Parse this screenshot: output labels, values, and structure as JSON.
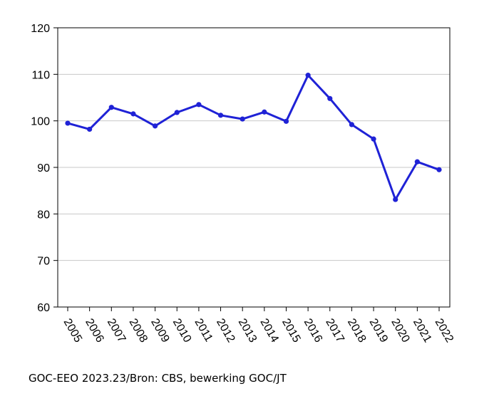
{
  "chart_data": {
    "type": "line",
    "title": "",
    "xlabel": "",
    "ylabel": "",
    "x": [
      "2005",
      "2006",
      "2007",
      "2008",
      "2009",
      "2010",
      "2011",
      "2012",
      "2013",
      "2014",
      "2015",
      "2016",
      "2017",
      "2018",
      "2019",
      "2020",
      "2021",
      "2022"
    ],
    "series": [
      {
        "values": [
          99.5,
          98.2,
          102.9,
          101.5,
          98.9,
          101.8,
          103.5,
          101.2,
          100.4,
          101.9,
          99.9,
          109.8,
          104.8,
          99.2,
          96.1,
          83.1,
          91.2,
          89.5
        ],
        "color": "#1f22d6"
      }
    ],
    "ylim": [
      60,
      120
    ],
    "yticks": [
      60,
      70,
      80,
      90,
      100,
      110,
      120
    ],
    "grid": true,
    "legend": "none"
  },
  "source_note": "GOC-EEO 2023.23/Bron: CBS, bewerking GOC/JT"
}
